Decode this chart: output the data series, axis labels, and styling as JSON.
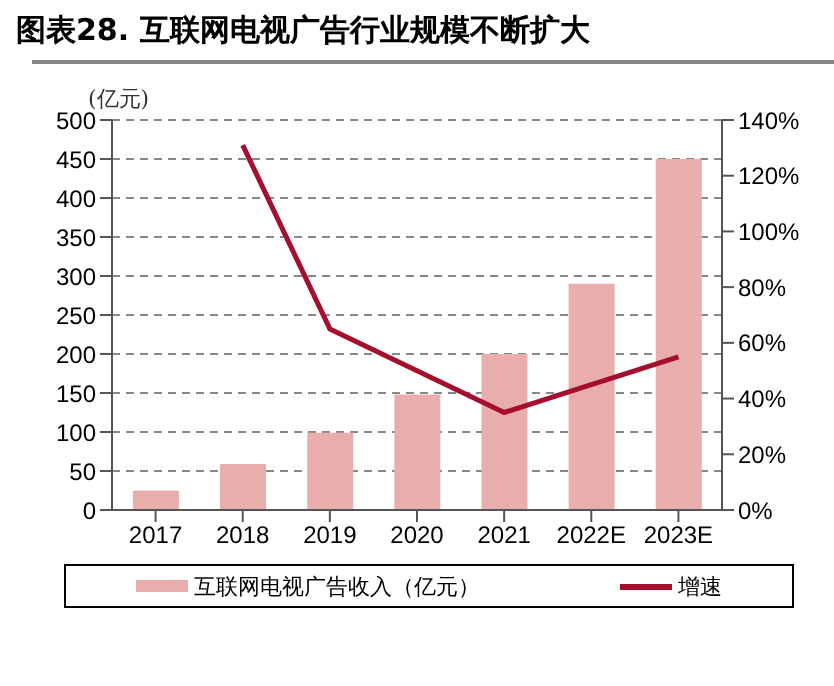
{
  "chart_data": {
    "type": "bar",
    "title": "图表28. 互联网电视广告行业规模不断扩大",
    "ylabel": "(亿元)",
    "categories": [
      "2017",
      "2018",
      "2019",
      "2020",
      "2021",
      "2022E",
      "2023E"
    ],
    "series": [
      {
        "name": "互联网电视广告收入（亿元）",
        "color": "#e8aeae",
        "values": [
          25,
          59,
          99,
          148,
          200,
          290,
          450
        ]
      },
      {
        "name": "增速",
        "type": "line",
        "axis": "y2",
        "color": "#a50f2d",
        "values": [
          null,
          131,
          65,
          50,
          35,
          45,
          55
        ]
      }
    ],
    "ylim": [
      0,
      500
    ],
    "yticks": [
      0,
      50,
      100,
      150,
      200,
      250,
      300,
      350,
      400,
      450,
      500
    ],
    "y2lim": [
      0,
      140
    ],
    "y2ticks": [
      {
        "value": 0,
        "label": "0%"
      },
      {
        "value": 20,
        "label": "20%"
      },
      {
        "value": 40,
        "label": "40%"
      },
      {
        "value": 60,
        "label": "60%"
      },
      {
        "value": 80,
        "label": "80%"
      },
      {
        "value": 100,
        "label": "100%"
      },
      {
        "value": 120,
        "label": "120%"
      },
      {
        "value": 140,
        "label": "140%"
      }
    ],
    "grid": "y",
    "legend": "bottom",
    "marker": "none",
    "line_style": "solid"
  }
}
